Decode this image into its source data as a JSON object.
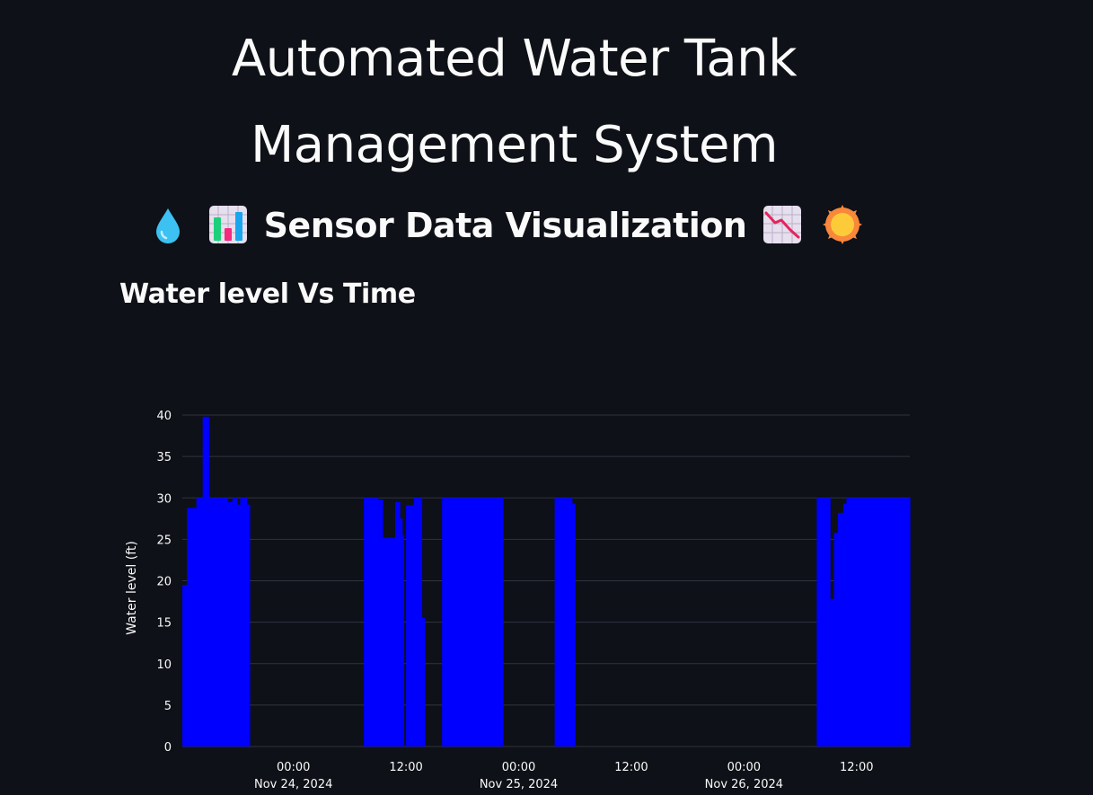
{
  "header": {
    "title_line1": "Automated Water Tank",
    "title_line2": "Management System"
  },
  "section": {
    "title": "Sensor Data Visualization",
    "emojis_left": [
      "droplet-icon",
      "bar-chart-icon"
    ],
    "emojis_right": [
      "chart-decreasing-icon",
      "sun-icon"
    ]
  },
  "chart_heading": "Water level Vs Time",
  "colors": {
    "bar": "#0000ff",
    "background": "#0e1117",
    "grid": "#31333f",
    "text": "#fafafa"
  },
  "chart_data": {
    "type": "bar",
    "title": "",
    "xlabel": "",
    "ylabel": "Water level (ft)",
    "ylim": [
      0,
      40
    ],
    "yticks": [
      0,
      5,
      10,
      15,
      20,
      25,
      30,
      35,
      40
    ],
    "xlim": [
      "2024-11-23T12:10",
      "2024-11-26T17:40"
    ],
    "xticks": [
      {
        "line1": "00:00",
        "line2": "Nov 24, 2024",
        "t": "2024-11-24T00:00"
      },
      {
        "line1": "12:00",
        "line2": "",
        "t": "2024-11-24T12:00"
      },
      {
        "line1": "00:00",
        "line2": "Nov 25, 2024",
        "t": "2024-11-25T00:00"
      },
      {
        "line1": "12:00",
        "line2": "",
        "t": "2024-11-25T12:00"
      },
      {
        "line1": "00:00",
        "line2": "Nov 26, 2024",
        "t": "2024-11-26T00:00"
      },
      {
        "line1": "12:00",
        "line2": "",
        "t": "2024-11-26T12:00"
      }
    ],
    "bars": [
      {
        "start": "2024-11-23T12:10",
        "end": "2024-11-23T12:40",
        "value": 19.5
      },
      {
        "start": "2024-11-23T12:40",
        "end": "2024-11-23T13:40",
        "value": 28.8
      },
      {
        "start": "2024-11-23T13:40",
        "end": "2024-11-23T14:20",
        "value": 30
      },
      {
        "start": "2024-11-23T14:20",
        "end": "2024-11-23T15:00",
        "value": 39.8
      },
      {
        "start": "2024-11-23T15:00",
        "end": "2024-11-23T17:00",
        "value": 30
      },
      {
        "start": "2024-11-23T17:00",
        "end": "2024-11-23T17:30",
        "value": 29.5
      },
      {
        "start": "2024-11-23T17:30",
        "end": "2024-11-23T18:00",
        "value": 30
      },
      {
        "start": "2024-11-23T18:00",
        "end": "2024-11-23T18:20",
        "value": 29.2
      },
      {
        "start": "2024-11-23T18:20",
        "end": "2024-11-23T19:00",
        "value": 30
      },
      {
        "start": "2024-11-23T19:00",
        "end": "2024-11-23T19:20",
        "value": 29.2
      },
      {
        "start": "2024-11-24T07:30",
        "end": "2024-11-24T09:00",
        "value": 30
      },
      {
        "start": "2024-11-24T09:00",
        "end": "2024-11-24T09:30",
        "value": 29.8
      },
      {
        "start": "2024-11-24T09:30",
        "end": "2024-11-24T11:00",
        "value": 25.2
      },
      {
        "start": "2024-11-24T10:50",
        "end": "2024-11-24T11:20",
        "value": 29.5
      },
      {
        "start": "2024-11-24T11:20",
        "end": "2024-11-24T11:35",
        "value": 27.5
      },
      {
        "start": "2024-11-24T11:35",
        "end": "2024-11-24T11:45",
        "value": 25.5
      },
      {
        "start": "2024-11-24T12:00",
        "end": "2024-11-24T12:50",
        "value": 29.1
      },
      {
        "start": "2024-11-24T12:50",
        "end": "2024-11-24T13:40",
        "value": 30
      },
      {
        "start": "2024-11-24T13:40",
        "end": "2024-11-24T14:00",
        "value": 15.5
      },
      {
        "start": "2024-11-24T15:50",
        "end": "2024-11-24T22:20",
        "value": 30
      },
      {
        "start": "2024-11-25T03:50",
        "end": "2024-11-25T05:40",
        "value": 30
      },
      {
        "start": "2024-11-25T05:40",
        "end": "2024-11-25T06:00",
        "value": 29.3
      },
      {
        "start": "2024-11-26T07:45",
        "end": "2024-11-26T09:10",
        "value": 30
      },
      {
        "start": "2024-11-26T09:10",
        "end": "2024-11-26T09:35",
        "value": 17.8
      },
      {
        "start": "2024-11-26T09:35",
        "end": "2024-11-26T10:00",
        "value": 25.8
      },
      {
        "start": "2024-11-26T10:00",
        "end": "2024-11-26T10:35",
        "value": 28.2
      },
      {
        "start": "2024-11-26T10:35",
        "end": "2024-11-26T10:55",
        "value": 29.3
      },
      {
        "start": "2024-11-26T10:55",
        "end": "2024-11-26T17:40",
        "value": 30
      }
    ]
  }
}
